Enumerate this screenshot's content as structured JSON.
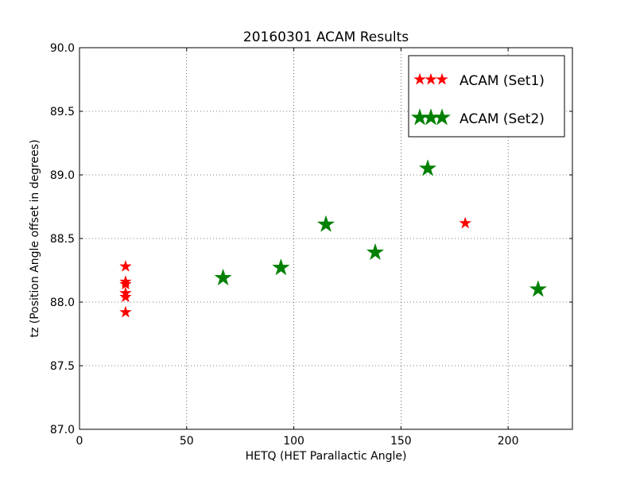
{
  "chart_data": {
    "type": "scatter",
    "title": "20160301 ACAM Results",
    "xlabel": "HETQ (HET Parallactic Angle)",
    "ylabel": "tz (Position Angle offset in degrees)",
    "xlim": [
      0,
      230
    ],
    "ylim": [
      87.0,
      90.0
    ],
    "xticks": [
      0,
      50,
      100,
      150,
      200
    ],
    "yticks": [
      "87.0",
      "87.5",
      "88.0",
      "88.5",
      "89.0",
      "89.5",
      "90.0"
    ],
    "grid": true,
    "legend_position": "top-right",
    "series": [
      {
        "name": "ACAM (Set1)",
        "color": "#ff0000",
        "marker": "star-small",
        "points": [
          {
            "x": 21.5,
            "y": 88.28
          },
          {
            "x": 21.5,
            "y": 88.16
          },
          {
            "x": 21.5,
            "y": 88.14
          },
          {
            "x": 21.5,
            "y": 88.07
          },
          {
            "x": 21.5,
            "y": 88.04
          },
          {
            "x": 21.5,
            "y": 87.92
          },
          {
            "x": 180,
            "y": 88.62
          }
        ]
      },
      {
        "name": "ACAM (Set2)",
        "color": "#008000",
        "marker": "star-large",
        "points": [
          {
            "x": 67,
            "y": 88.19
          },
          {
            "x": 94,
            "y": 88.27
          },
          {
            "x": 115,
            "y": 88.61
          },
          {
            "x": 138,
            "y": 88.39
          },
          {
            "x": 162.5,
            "y": 89.05
          },
          {
            "x": 214,
            "y": 88.1
          }
        ]
      }
    ]
  }
}
